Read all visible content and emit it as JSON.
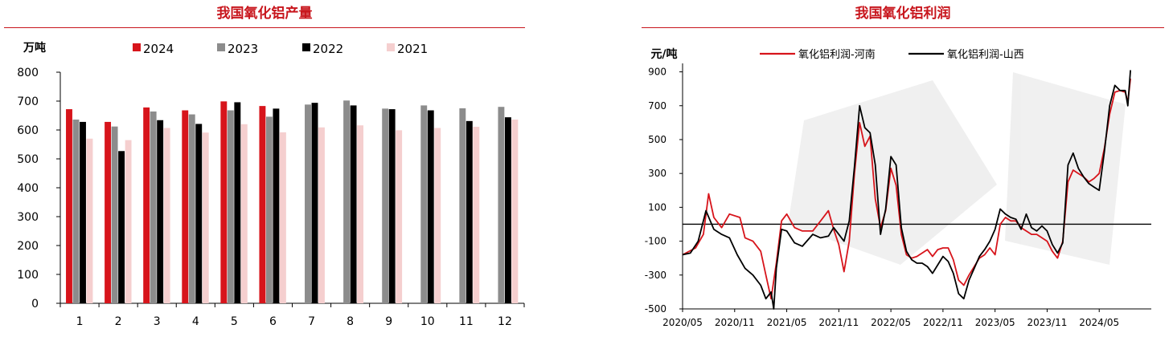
{
  "colors": {
    "title": "#c8161d",
    "s2024": "#d7141b",
    "s2023": "#8c8c8c",
    "s2022": "#000000",
    "s2021": "#f5cfcf",
    "henan": "#d7141b",
    "shanxi": "#000000"
  },
  "chart_data": [
    {
      "type": "bar",
      "title": "我国氧化铝产量",
      "ylabel": "万吨",
      "ylim": [
        0,
        800
      ],
      "yticks": [
        "0",
        "100",
        "200",
        "300",
        "400",
        "500",
        "600",
        "700",
        "800"
      ],
      "categories": [
        "1",
        "2",
        "3",
        "4",
        "5",
        "6",
        "7",
        "8",
        "9",
        "10",
        "11",
        "12"
      ],
      "legend_placement": "top",
      "series": [
        {
          "name": "2024",
          "values": [
            672,
            628,
            678,
            668,
            699,
            683,
            null,
            null,
            null,
            null,
            null,
            null
          ]
        },
        {
          "name": "2023",
          "values": [
            636,
            612,
            664,
            654,
            668,
            646,
            688,
            702,
            674,
            685,
            675,
            680
          ]
        },
        {
          "name": "2022",
          "values": [
            628,
            527,
            634,
            621,
            696,
            674,
            694,
            685,
            672,
            668,
            631,
            644
          ]
        },
        {
          "name": "2021",
          "values": [
            570,
            565,
            607,
            591,
            620,
            592,
            609,
            616,
            599,
            607,
            611,
            636
          ]
        }
      ]
    },
    {
      "type": "line",
      "title": "我国氧化铝利润",
      "ylabel": "元/吨",
      "ylim": [
        -500,
        950
      ],
      "yticks": [
        "-500",
        "-300",
        "-100",
        "100",
        "300",
        "500",
        "700",
        "900"
      ],
      "xticks": [
        "2020/05",
        "2020/11",
        "2021/05",
        "2021/11",
        "2022/05",
        "2022/11",
        "2023/05",
        "2023/11",
        "2024/05"
      ],
      "legend_placement": "top",
      "series": [
        {
          "name": "氧化铝利润-河南",
          "points": [
            [
              0,
              -180
            ],
            [
              0.5,
              -140
            ],
            [
              0.8,
              -60
            ],
            [
              1.0,
              180
            ],
            [
              1.2,
              40
            ],
            [
              1.5,
              -20
            ],
            [
              1.8,
              60
            ],
            [
              2.2,
              40
            ],
            [
              2.4,
              -80
            ],
            [
              2.7,
              -100
            ],
            [
              3.0,
              -160
            ],
            [
              3.2,
              -300
            ],
            [
              3.4,
              -440
            ],
            [
              3.6,
              -230
            ],
            [
              3.8,
              20
            ],
            [
              4.0,
              60
            ],
            [
              4.3,
              -20
            ],
            [
              4.6,
              -40
            ],
            [
              5.0,
              -40
            ],
            [
              5.3,
              20
            ],
            [
              5.6,
              80
            ],
            [
              5.8,
              -30
            ],
            [
              6.0,
              -120
            ],
            [
              6.2,
              -280
            ],
            [
              6.4,
              -100
            ],
            [
              6.6,
              300
            ],
            [
              6.8,
              600
            ],
            [
              7.0,
              460
            ],
            [
              7.2,
              520
            ],
            [
              7.4,
              150
            ],
            [
              7.6,
              -20
            ],
            [
              7.8,
              80
            ],
            [
              8.0,
              330
            ],
            [
              8.2,
              230
            ],
            [
              8.4,
              -60
            ],
            [
              8.6,
              -180
            ],
            [
              8.8,
              -200
            ],
            [
              9.0,
              -190
            ],
            [
              9.2,
              -170
            ],
            [
              9.4,
              -150
            ],
            [
              9.6,
              -190
            ],
            [
              9.8,
              -150
            ],
            [
              10.0,
              -140
            ],
            [
              10.2,
              -140
            ],
            [
              10.4,
              -210
            ],
            [
              10.6,
              -330
            ],
            [
              10.8,
              -360
            ],
            [
              11.0,
              -300
            ],
            [
              11.2,
              -250
            ],
            [
              11.4,
              -200
            ],
            [
              11.6,
              -180
            ],
            [
              11.8,
              -140
            ],
            [
              12.0,
              -180
            ],
            [
              12.2,
              0
            ],
            [
              12.4,
              40
            ],
            [
              12.6,
              20
            ],
            [
              12.8,
              20
            ],
            [
              13.0,
              -20
            ],
            [
              13.2,
              -40
            ],
            [
              13.4,
              -60
            ],
            [
              13.6,
              -60
            ],
            [
              13.8,
              -80
            ],
            [
              14.0,
              -100
            ],
            [
              14.2,
              -160
            ],
            [
              14.4,
              -200
            ],
            [
              14.6,
              -100
            ],
            [
              14.8,
              250
            ],
            [
              15.0,
              320
            ],
            [
              15.2,
              300
            ],
            [
              15.4,
              280
            ],
            [
              15.6,
              250
            ],
            [
              15.8,
              270
            ],
            [
              16.0,
              300
            ],
            [
              16.2,
              450
            ],
            [
              16.4,
              650
            ],
            [
              16.6,
              780
            ],
            [
              16.8,
              790
            ],
            [
              17.0,
              780
            ],
            [
              17.1,
              720
            ],
            [
              17.2,
              860
            ]
          ]
        },
        {
          "name": "氧化铝利润-山西",
          "points": [
            [
              0,
              -180
            ],
            [
              0.3,
              -170
            ],
            [
              0.6,
              -100
            ],
            [
              0.9,
              80
            ],
            [
              1.2,
              -30
            ],
            [
              1.5,
              -60
            ],
            [
              1.8,
              -80
            ],
            [
              2.1,
              -180
            ],
            [
              2.4,
              -260
            ],
            [
              2.7,
              -300
            ],
            [
              3.0,
              -360
            ],
            [
              3.2,
              -440
            ],
            [
              3.4,
              -400
            ],
            [
              3.5,
              -500
            ],
            [
              3.6,
              -260
            ],
            [
              3.8,
              -30
            ],
            [
              4.0,
              -40
            ],
            [
              4.3,
              -110
            ],
            [
              4.6,
              -130
            ],
            [
              5.0,
              -60
            ],
            [
              5.3,
              -80
            ],
            [
              5.6,
              -70
            ],
            [
              5.8,
              -20
            ],
            [
              6.0,
              -60
            ],
            [
              6.2,
              -100
            ],
            [
              6.4,
              20
            ],
            [
              6.6,
              340
            ],
            [
              6.8,
              700
            ],
            [
              7.0,
              570
            ],
            [
              7.2,
              540
            ],
            [
              7.4,
              350
            ],
            [
              7.6,
              -60
            ],
            [
              7.8,
              90
            ],
            [
              8.0,
              400
            ],
            [
              8.2,
              350
            ],
            [
              8.4,
              -20
            ],
            [
              8.6,
              -160
            ],
            [
              8.8,
              -210
            ],
            [
              9.0,
              -230
            ],
            [
              9.2,
              -230
            ],
            [
              9.4,
              -250
            ],
            [
              9.6,
              -290
            ],
            [
              9.8,
              -240
            ],
            [
              10.0,
              -190
            ],
            [
              10.2,
              -220
            ],
            [
              10.4,
              -290
            ],
            [
              10.6,
              -410
            ],
            [
              10.8,
              -440
            ],
            [
              11.0,
              -330
            ],
            [
              11.2,
              -260
            ],
            [
              11.4,
              -190
            ],
            [
              11.6,
              -150
            ],
            [
              11.8,
              -100
            ],
            [
              12.0,
              -30
            ],
            [
              12.2,
              90
            ],
            [
              12.4,
              60
            ],
            [
              12.6,
              40
            ],
            [
              12.8,
              30
            ],
            [
              13.0,
              -30
            ],
            [
              13.2,
              60
            ],
            [
              13.4,
              -20
            ],
            [
              13.6,
              -40
            ],
            [
              13.8,
              -10
            ],
            [
              14.0,
              -40
            ],
            [
              14.2,
              -120
            ],
            [
              14.4,
              -170
            ],
            [
              14.6,
              -110
            ],
            [
              14.8,
              350
            ],
            [
              15.0,
              420
            ],
            [
              15.2,
              330
            ],
            [
              15.4,
              280
            ],
            [
              15.6,
              240
            ],
            [
              15.8,
              220
            ],
            [
              16.0,
              200
            ],
            [
              16.2,
              430
            ],
            [
              16.4,
              700
            ],
            [
              16.6,
              820
            ],
            [
              16.8,
              790
            ],
            [
              17.0,
              790
            ],
            [
              17.1,
              700
            ],
            [
              17.2,
              910
            ]
          ]
        }
      ]
    }
  ]
}
